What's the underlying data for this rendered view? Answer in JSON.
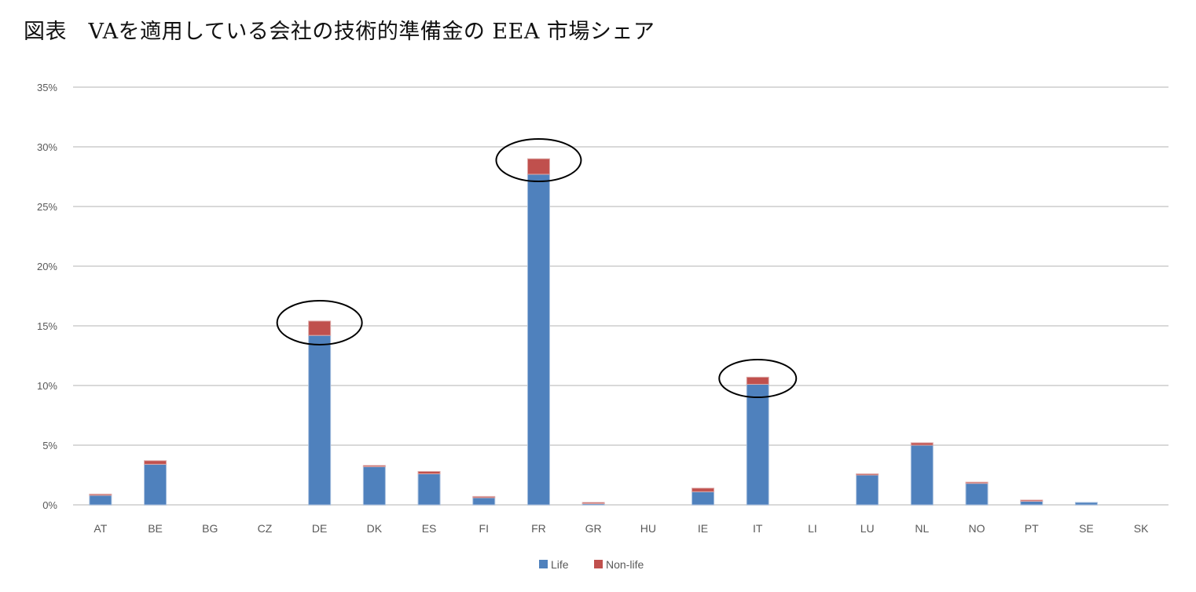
{
  "title": "図表　VAを適用している会社の技術的準備金の EEA 市場シェア",
  "colors": {
    "life": "#4F81BD",
    "non_life": "#C0504D",
    "gridline": "#D9D9D9",
    "annotation": "#000000"
  },
  "chart_data": {
    "type": "bar",
    "stacked": true,
    "title": "VAを適用している会社の技術的準備金の EEA 市場シェア",
    "xlabel": "",
    "ylabel": "",
    "ylim": [
      0,
      35
    ],
    "y_ticks": [
      "0%",
      "5%",
      "10%",
      "15%",
      "20%",
      "25%",
      "30%",
      "35%"
    ],
    "grid": true,
    "legend_position": "bottom",
    "categories": [
      "AT",
      "BE",
      "BG",
      "CZ",
      "DE",
      "DK",
      "ES",
      "FI",
      "FR",
      "GR",
      "HU",
      "IE",
      "IT",
      "LI",
      "LU",
      "NL",
      "NO",
      "PT",
      "SE",
      "SK"
    ],
    "series": [
      {
        "name": "Life",
        "values": [
          0.8,
          3.4,
          0,
          0,
          14.2,
          3.2,
          2.6,
          0.6,
          27.7,
          0.1,
          0,
          1.1,
          10.1,
          0,
          2.5,
          5.0,
          1.8,
          0.3,
          0.2,
          0
        ]
      },
      {
        "name": "Non-life",
        "values": [
          0.1,
          0.3,
          0,
          0,
          1.2,
          0.1,
          0.2,
          0.1,
          1.3,
          0.1,
          0,
          0.3,
          0.6,
          0,
          0.1,
          0.2,
          0.1,
          0.1,
          0.0,
          0
        ]
      }
    ],
    "annotations": [
      {
        "type": "ellipse",
        "category": "DE",
        "note": "highlighted"
      },
      {
        "type": "ellipse",
        "category": "FR",
        "note": "highlighted"
      },
      {
        "type": "ellipse",
        "category": "IT",
        "note": "highlighted"
      }
    ]
  },
  "legend": {
    "life_label": "Life",
    "non_life_label": "Non-life"
  }
}
